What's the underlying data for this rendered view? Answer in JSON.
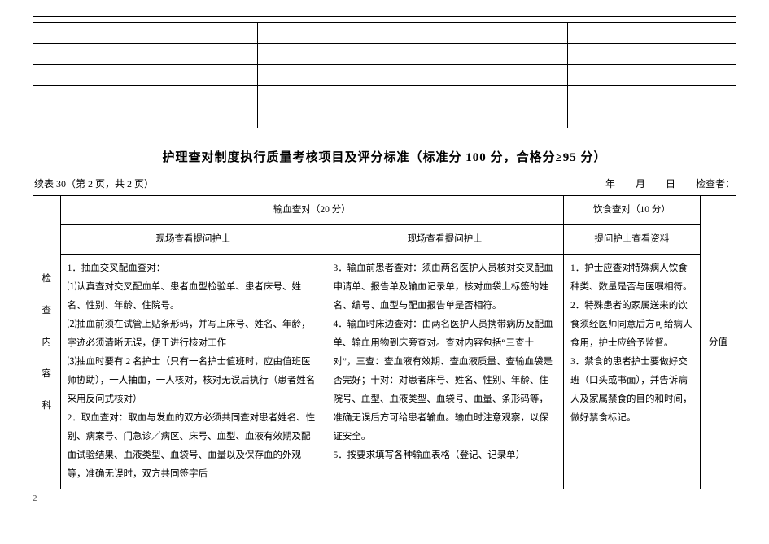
{
  "emptyTable": {
    "rows": 5,
    "cols": 5
  },
  "title": "护理查对制度执行质量考核项目及评分标准（标准分 100 分，合格分≥95 分）",
  "metaLeft": "续表 30（第 2 页，共 2 页）",
  "metaYear": "年",
  "metaMonth": "月",
  "metaDay": "日",
  "metaChecker": "检查者：",
  "sideHeader": [
    "检",
    "查",
    "内",
    "容",
    "科"
  ],
  "header": {
    "bloodSection": "输血查对（20 分）",
    "dietSection": "饮食查对（10 分）",
    "sub1": "现场查看提问护士",
    "sub2": "现场查看提问护士",
    "sub3": "提问护士查看资料",
    "score": "分值"
  },
  "colA": "1．抽血交叉配血查对：\n⑴认真查对交叉配血单、患者血型检验单、患者床号、姓名、性别、年龄、住院号。\n⑵抽血前须在试管上贴条形码，并写上床号、姓名、年龄，字迹必须清晰无误，便于进行核对工作\n⑶抽血时要有 2 名护士（只有一名护士值班时，应由值班医师协助），一人抽血，一人核对，核对无误后执行（患者姓名采用反问式核对）\n2．取血查对：取血与发血的双方必须共同查对患者姓名、性别、病案号、门急诊／病区、床号、血型、血液有效期及配血试验结果、血液类型、血袋号、血量以及保存血的外观等，准确无误时，双方共同签字后",
  "colB": "3．输血前患者查对：须由两名医护人员核对交叉配血申请单、报告单及输血记录单，核对血袋上标签的姓名、编号、血型与配血报告单是否相符。\n4．输血时床边查对：由两名医护人员携带病历及配血单、输血用物到床旁查对。查对内容包括“三查十对”，三查：查血液有效期、查血液质量、查输血袋是否完好；十对：对患者床号、姓名、性别、年龄、住院号、血型、血液类型、血袋号、血量、条形码等，准确无误后方可给患者输血。输血时注意观察，以保证安全。\n5．按要求填写各种输血表格（登记、记录单）",
  "colC": "1．护士应查对特殊病人饮食种类、数量是否与医嘱相符。\n2．特殊患者的家属送来的饮食须经医师同意后方可给病人食用，护士应给予监督。\n3．禁食的患者护士要做好交班（口头或书面），并告诉病人及家属禁食的目的和时间，做好禁食标记。",
  "pageNum": "2"
}
